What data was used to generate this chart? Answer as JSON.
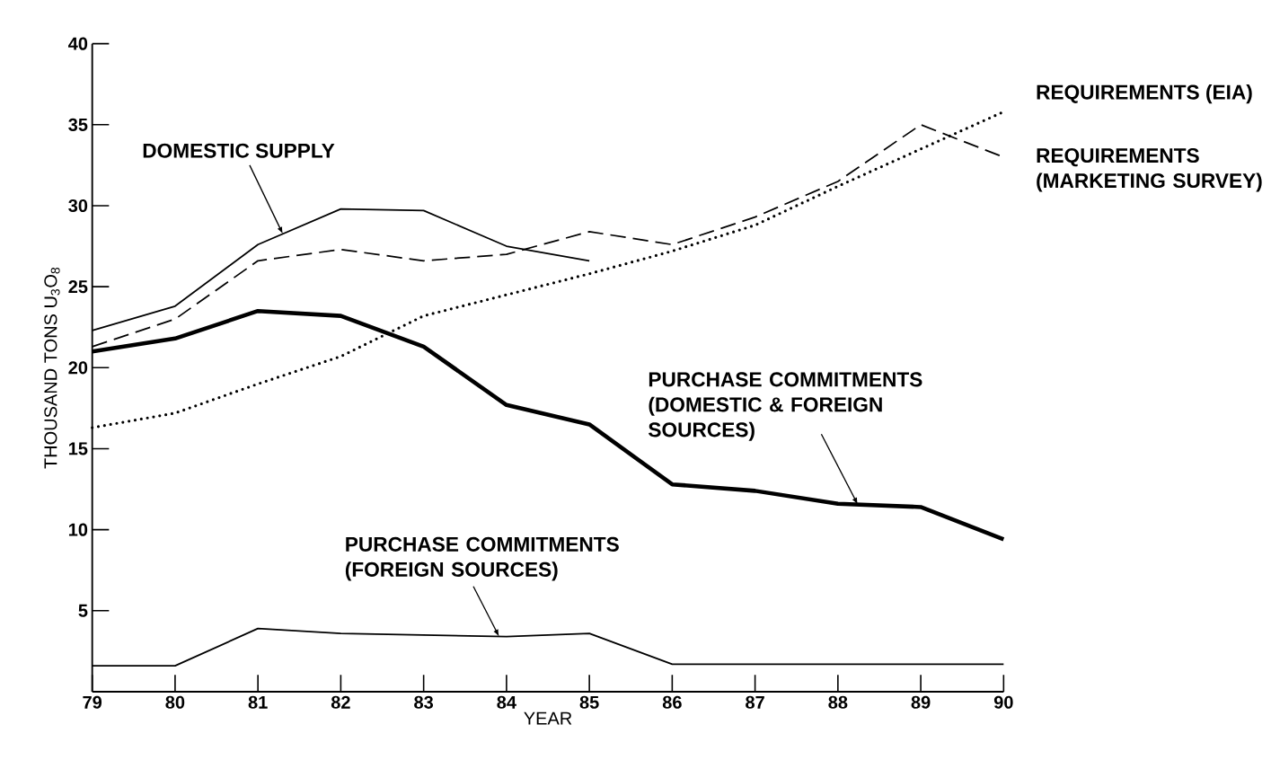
{
  "chart_data": {
    "type": "line",
    "xlabel": "YEAR",
    "ylabel": "THOUSAND TONS U$_{3}$O$_{8}$",
    "x": [
      79,
      80,
      81,
      82,
      83,
      84,
      85,
      86,
      87,
      88,
      89,
      90
    ],
    "xlim": [
      79,
      90
    ],
    "xticks": [
      79,
      80,
      81,
      82,
      83,
      84,
      85,
      86,
      87,
      88,
      89,
      90
    ],
    "ylim": [
      0,
      40
    ],
    "yticks": [
      5,
      10,
      15,
      20,
      25,
      30,
      35,
      40
    ],
    "series": [
      {
        "name": "DOMESTIC SUPPLY",
        "color": "#000000",
        "line_style": "solid",
        "values": [
          22.3,
          23.8,
          27.6,
          29.8,
          29.7,
          27.5,
          26.6,
          null,
          null,
          null,
          null,
          null
        ]
      },
      {
        "name": "REQUIREMENTS (MARKETING SURVEY)",
        "color": "#000000",
        "line_style": "dashed",
        "values": [
          21.3,
          23.0,
          26.6,
          27.3,
          26.6,
          27.0,
          28.4,
          27.6,
          29.3,
          31.5,
          35.0,
          33.0
        ]
      },
      {
        "name": "REQUIREMENTS (EIA)",
        "color": "#000000",
        "line_style": "dotted",
        "values": [
          16.3,
          17.2,
          19.0,
          20.7,
          23.2,
          24.5,
          25.8,
          27.2,
          28.8,
          31.2,
          33.5,
          35.8
        ]
      },
      {
        "name": "PURCHASE COMMITMENTS (DOMESTIC & FOREIGN SOURCES)",
        "color": "#000000",
        "line_style": "solid",
        "values": [
          21.0,
          21.8,
          23.5,
          23.2,
          21.3,
          17.7,
          16.5,
          12.8,
          12.4,
          11.6,
          11.4,
          9.4
        ]
      },
      {
        "name": "PURCHASE COMMITMENTS (FOREIGN SOURCES)",
        "color": "#000000",
        "line_style": "solid",
        "values": [
          1.6,
          1.6,
          3.9,
          3.6,
          3.5,
          3.4,
          3.6,
          1.7,
          1.7,
          1.7,
          1.7,
          1.7
        ]
      }
    ]
  }
}
